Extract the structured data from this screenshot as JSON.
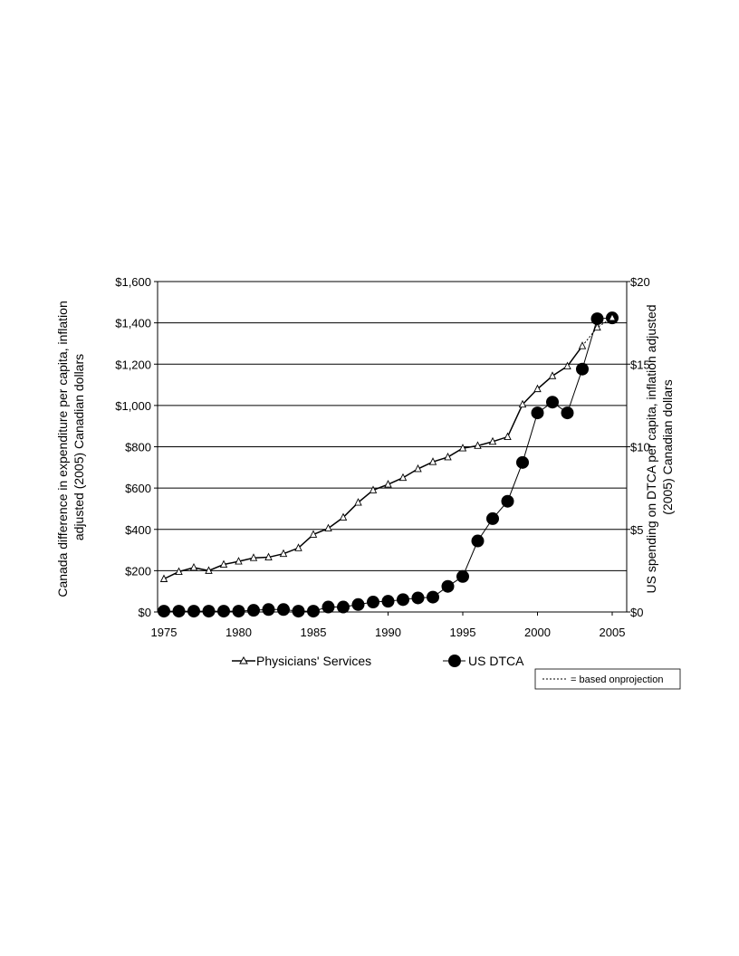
{
  "chart_data": {
    "type": "line",
    "x": [
      1975,
      1976,
      1977,
      1978,
      1979,
      1980,
      1981,
      1982,
      1983,
      1984,
      1985,
      1986,
      1987,
      1988,
      1989,
      1990,
      1991,
      1992,
      1993,
      1994,
      1995,
      1996,
      1997,
      1998,
      1999,
      2000,
      2001,
      2002,
      2003,
      2004,
      2005
    ],
    "xlim": [
      1975,
      2005
    ],
    "xticks": [
      1975,
      1980,
      1985,
      1990,
      1995,
      2000,
      2005
    ],
    "y_left": {
      "label_lines": [
        "Canada difference in expenditure per capita, inflation",
        "adjusted (2005) Canadian dollars"
      ],
      "lim": [
        0,
        1600
      ],
      "ticks": [
        0,
        200,
        400,
        600,
        800,
        1000,
        1200,
        1400,
        1600
      ],
      "tick_labels": [
        "$0",
        "$200",
        "$400",
        "$600",
        "$800",
        "$1,000",
        "$1,200",
        "$1,400",
        "$1,600"
      ]
    },
    "y_right": {
      "label_lines": [
        "US spending on DTCA per capita, inflation adjusted",
        "(2005) Canadian dollars"
      ],
      "lim": [
        0,
        20
      ],
      "ticks": [
        0,
        5,
        10,
        15,
        20
      ],
      "tick_labels": [
        "$0",
        "$5",
        "$10",
        "$15",
        "$20"
      ]
    },
    "grid": "horizontal",
    "series": [
      {
        "name": "Physicians' Services",
        "axis": "left",
        "marker": "triangle",
        "values": [
          160,
          195,
          215,
          200,
          230,
          245,
          262,
          265,
          282,
          310,
          375,
          405,
          458,
          530,
          590,
          618,
          650,
          693,
          727,
          750,
          793,
          805,
          825,
          848,
          1005,
          1080,
          1143,
          1190,
          1288,
          1378,
          1425
        ],
        "projected_from_index": 28
      },
      {
        "name": "US DTCA",
        "axis": "right",
        "marker": "circle",
        "values": [
          0.05,
          0.05,
          0.05,
          0.05,
          0.05,
          0.05,
          0.1,
          0.15,
          0.15,
          0.05,
          0.05,
          0.3,
          0.3,
          0.45,
          0.6,
          0.65,
          0.75,
          0.85,
          0.9,
          1.55,
          2.15,
          4.3,
          5.65,
          6.7,
          9.05,
          12.05,
          12.7,
          12.05,
          14.7,
          17.75,
          17.8
        ]
      }
    ],
    "note": "= based onprojection",
    "legend_position": "bottom"
  }
}
